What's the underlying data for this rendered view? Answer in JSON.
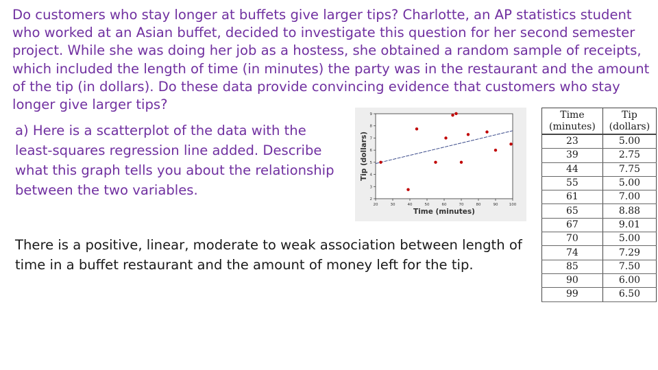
{
  "intro_text": "Do customers who stay longer at buffets give larger tips? Charlotte, an AP statistics student who worked at an Asian buffet, decided to investigate this question for her second semester project. While she was doing her job as a hostess, she obtained a random sample of receipts, which included the length of time (in minutes) the party was in the restaurant and the amount of the tip (in dollars). Do these data provide convincing evidence that customers who stay longer give larger tips?",
  "question_a": "a) Here is a scatterplot of the data with the least-squares regression line added. Describe what this graph tells you about the relationship between the two variables.",
  "answer_text": "There is a positive, linear, moderate to weak association between length of time in a buffet restaurant and the amount of money left for the tip.",
  "table": {
    "headers": [
      "Time\n(minutes)",
      "Tip\n(dollars)"
    ],
    "rows": [
      [
        "23",
        "5.00"
      ],
      [
        "39",
        "2.75"
      ],
      [
        "44",
        "7.75"
      ],
      [
        "55",
        "5.00"
      ],
      [
        "61",
        "7.00"
      ],
      [
        "65",
        "8.88"
      ],
      [
        "67",
        "9.01"
      ],
      [
        "70",
        "5.00"
      ],
      [
        "74",
        "7.29"
      ],
      [
        "85",
        "7.50"
      ],
      [
        "90",
        "6.00"
      ],
      [
        "99",
        "6.50"
      ]
    ]
  },
  "chart_data": {
    "type": "scatter",
    "title": "",
    "xlabel": "Time (minutes)",
    "ylabel": "Tip (dollars)",
    "xlim": [
      20,
      100
    ],
    "ylim": [
      2,
      9
    ],
    "x_ticks": [
      "20",
      "30",
      "40",
      "50",
      "60",
      "70",
      "80",
      "90",
      "100"
    ],
    "y_ticks": [
      "2",
      "3",
      "4",
      "5",
      "6",
      "7",
      "8",
      "9"
    ],
    "x": [
      23,
      39,
      44,
      55,
      61,
      65,
      67,
      70,
      74,
      85,
      90,
      99
    ],
    "y": [
      5.0,
      2.75,
      7.75,
      5.0,
      7.0,
      8.88,
      9.01,
      5.0,
      7.29,
      7.5,
      6.0,
      6.5
    ],
    "regression_line": {
      "x": [
        20,
        100
      ],
      "y": [
        4.9,
        7.6
      ]
    },
    "point_color": "#c00000",
    "line_color": "#3a4a8a",
    "grid": false,
    "background": "#eeeeee"
  }
}
